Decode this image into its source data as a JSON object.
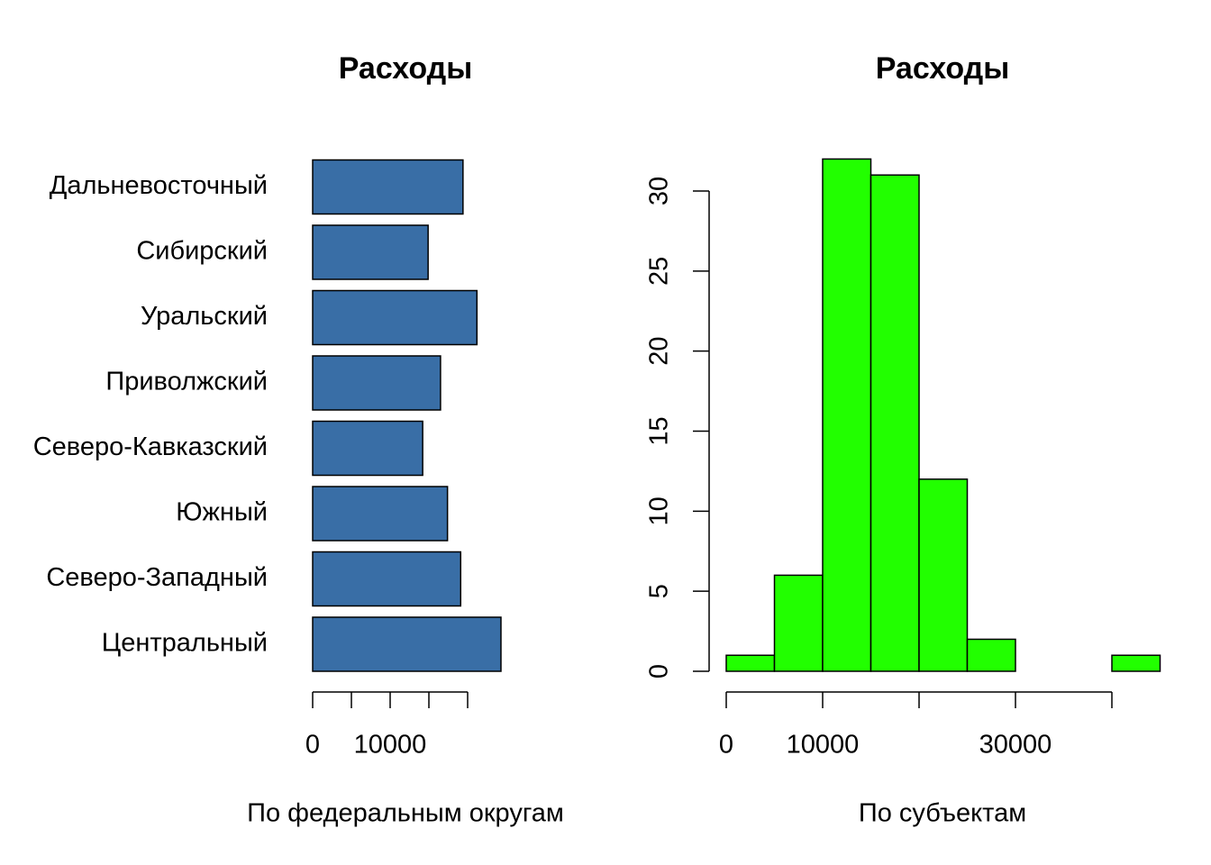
{
  "chart_data": [
    {
      "type": "bar",
      "orientation": "horizontal",
      "title": "Расходы",
      "xlabel": "По федеральным округам",
      "categories": [
        "Центральный",
        "Северо-Западный",
        "Южный",
        "Северо-Кавказский",
        "Приволжский",
        "Уральский",
        "Сибирский",
        "Дальневосточный"
      ],
      "values": [
        24300,
        19100,
        17400,
        14200,
        16500,
        21200,
        14900,
        19400
      ],
      "color": "#396ea6",
      "xlim": [
        0,
        25000
      ],
      "xticks": [
        0,
        {
          "value": 5000,
          "label": null
        },
        10000,
        {
          "value": 15000,
          "label": null
        },
        {
          "value": 20000,
          "label": null
        }
      ]
    },
    {
      "type": "histogram",
      "title": "Расходы",
      "xlabel": "По субъектам",
      "bins": [
        0,
        5000,
        10000,
        15000,
        20000,
        25000,
        30000,
        35000,
        40000,
        45000
      ],
      "values": [
        1,
        6,
        32,
        31,
        12,
        2,
        0,
        0,
        1
      ],
      "color": "#22ff00",
      "xlim": [
        0,
        45000
      ],
      "xticks": [
        0,
        10000,
        {
          "value": 20000,
          "label": null
        },
        30000,
        {
          "value": 40000,
          "label": null
        }
      ],
      "ylim": [
        0,
        30
      ],
      "yticks": [
        0,
        5,
        10,
        15,
        20,
        25,
        30
      ]
    }
  ]
}
